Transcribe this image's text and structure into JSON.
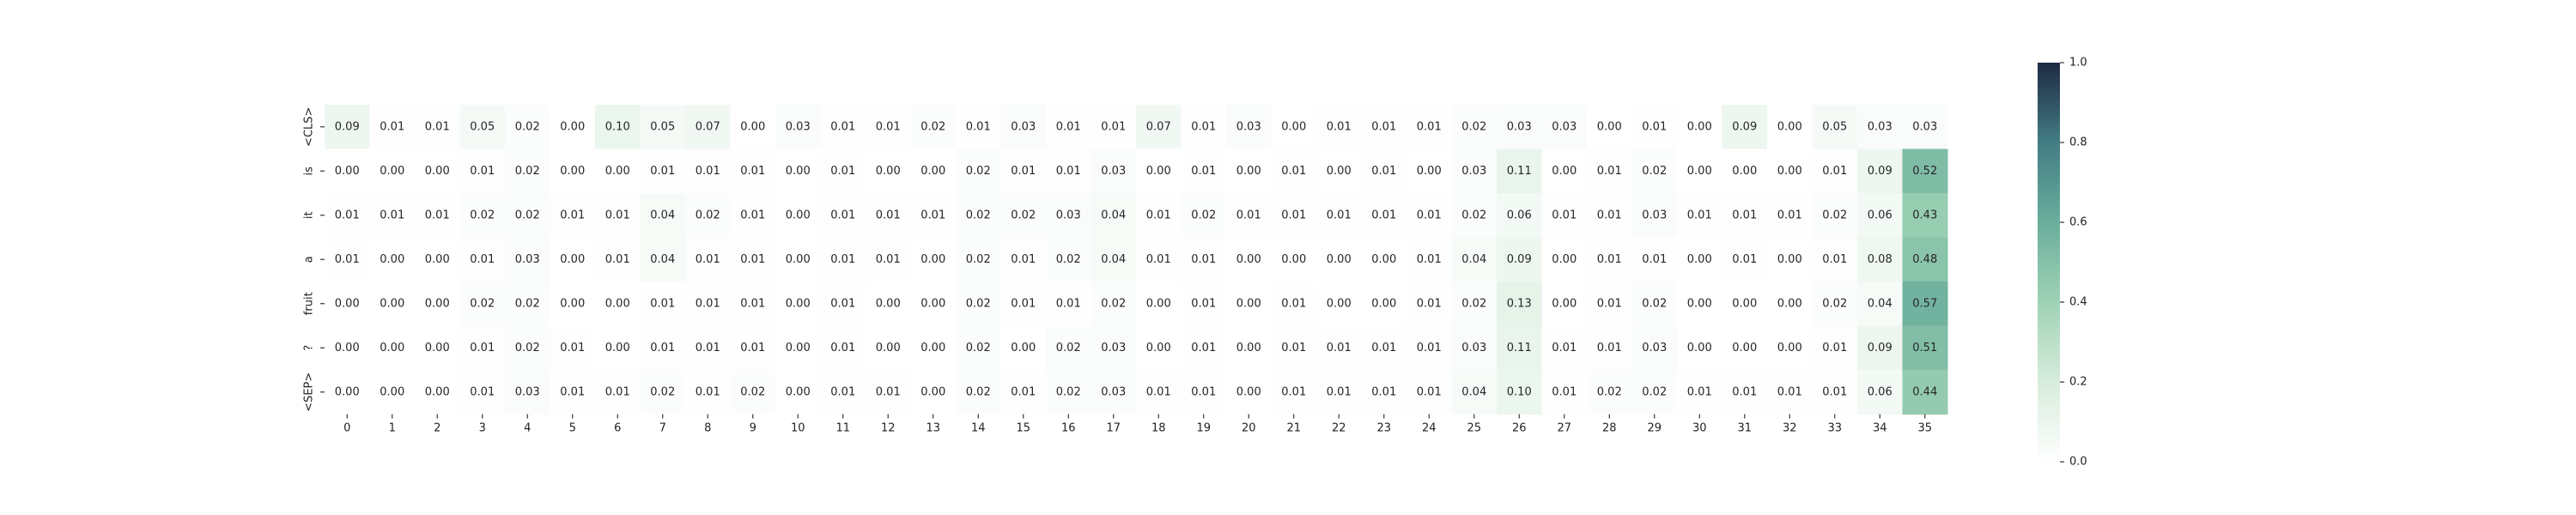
{
  "chart_data": {
    "type": "heatmap",
    "title": "",
    "xlabel": "",
    "ylabel": "",
    "x_labels": [
      "0",
      "1",
      "2",
      "3",
      "4",
      "5",
      "6",
      "7",
      "8",
      "9",
      "10",
      "11",
      "12",
      "13",
      "14",
      "15",
      "16",
      "17",
      "18",
      "19",
      "20",
      "21",
      "22",
      "23",
      "24",
      "25",
      "26",
      "27",
      "28",
      "29",
      "30",
      "31",
      "32",
      "33",
      "34",
      "35"
    ],
    "y_labels": [
      "<CLS>",
      "is",
      "it",
      "a",
      "fruit",
      "?",
      "<SEP>"
    ],
    "values": [
      [
        0.09,
        0.01,
        0.01,
        0.05,
        0.02,
        0.0,
        0.1,
        0.05,
        0.07,
        0.0,
        0.03,
        0.01,
        0.01,
        0.02,
        0.01,
        0.03,
        0.01,
        0.01,
        0.07,
        0.01,
        0.03,
        0.0,
        0.01,
        0.01,
        0.01,
        0.02,
        0.03,
        0.03,
        0.0,
        0.01,
        0.0,
        0.09,
        0.0,
        0.05,
        0.03,
        0.03
      ],
      [
        0.0,
        0.0,
        0.0,
        0.01,
        0.02,
        0.0,
        0.0,
        0.01,
        0.01,
        0.01,
        0.0,
        0.01,
        0.0,
        0.0,
        0.02,
        0.01,
        0.01,
        0.03,
        0.0,
        0.01,
        0.0,
        0.01,
        0.0,
        0.01,
        0.0,
        0.03,
        0.11,
        0.0,
        0.01,
        0.02,
        0.0,
        0.0,
        0.0,
        0.01,
        0.09,
        0.52
      ],
      [
        0.01,
        0.01,
        0.01,
        0.02,
        0.02,
        0.01,
        0.01,
        0.04,
        0.02,
        0.01,
        0.0,
        0.01,
        0.01,
        0.01,
        0.02,
        0.02,
        0.03,
        0.04,
        0.01,
        0.02,
        0.01,
        0.01,
        0.01,
        0.01,
        0.01,
        0.02,
        0.06,
        0.01,
        0.01,
        0.03,
        0.01,
        0.01,
        0.01,
        0.02,
        0.06,
        0.43
      ],
      [
        0.01,
        0.0,
        0.0,
        0.01,
        0.03,
        0.0,
        0.01,
        0.04,
        0.01,
        0.01,
        0.0,
        0.01,
        0.01,
        0.0,
        0.02,
        0.01,
        0.02,
        0.04,
        0.01,
        0.01,
        0.0,
        0.0,
        0.0,
        0.0,
        0.01,
        0.04,
        0.09,
        0.0,
        0.01,
        0.01,
        0.0,
        0.01,
        0.0,
        0.01,
        0.08,
        0.48
      ],
      [
        0.0,
        0.0,
        0.0,
        0.02,
        0.02,
        0.0,
        0.0,
        0.01,
        0.01,
        0.01,
        0.0,
        0.01,
        0.0,
        0.0,
        0.02,
        0.01,
        0.01,
        0.02,
        0.0,
        0.01,
        0.0,
        0.01,
        0.0,
        0.0,
        0.01,
        0.02,
        0.13,
        0.0,
        0.01,
        0.02,
        0.0,
        0.0,
        0.0,
        0.02,
        0.04,
        0.57
      ],
      [
        0.0,
        0.0,
        0.0,
        0.01,
        0.02,
        0.01,
        0.0,
        0.01,
        0.01,
        0.01,
        0.0,
        0.01,
        0.0,
        0.0,
        0.02,
        0.0,
        0.02,
        0.03,
        0.0,
        0.01,
        0.0,
        0.01,
        0.01,
        0.01,
        0.01,
        0.03,
        0.11,
        0.01,
        0.01,
        0.03,
        0.0,
        0.0,
        0.0,
        0.01,
        0.09,
        0.51
      ],
      [
        0.0,
        0.0,
        0.0,
        0.01,
        0.03,
        0.01,
        0.01,
        0.02,
        0.01,
        0.02,
        0.0,
        0.01,
        0.01,
        0.0,
        0.02,
        0.01,
        0.02,
        0.03,
        0.01,
        0.01,
        0.0,
        0.01,
        0.01,
        0.01,
        0.01,
        0.04,
        0.1,
        0.01,
        0.02,
        0.02,
        0.01,
        0.01,
        0.01,
        0.01,
        0.06,
        0.44
      ]
    ],
    "annotations": "cell values shown with two decimals",
    "colorbar": {
      "vmin": 0.0,
      "vmax": 1.0,
      "ticks": [
        "0.0",
        "0.2",
        "0.4",
        "0.6",
        "0.8",
        "1.0"
      ],
      "colors": [
        "#ffffff",
        "#d7ecdc",
        "#9fd2b5",
        "#6aae9c",
        "#427c84",
        "#1f2a44"
      ]
    },
    "grid": false,
    "legend": "colorbar-right"
  }
}
